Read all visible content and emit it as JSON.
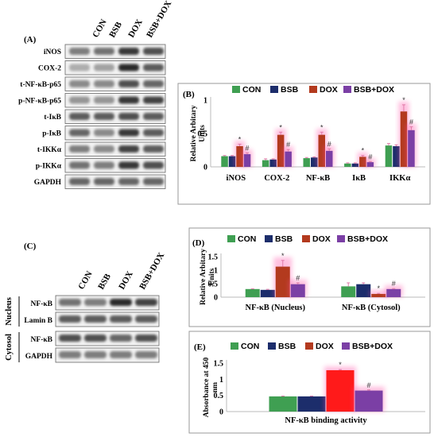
{
  "panel_a": {
    "label": "(A)",
    "groups": [
      "CON",
      "BSB",
      "DOX",
      "BSB+DOX"
    ],
    "bands": [
      "iNOS",
      "COX-2",
      "t-NF-κB-p65",
      "p-NF-κB-p65",
      "t-IκB",
      "p-IκB",
      "t-IKKα",
      "p-IKKα",
      "GAPDH"
    ]
  },
  "panel_c": {
    "label": "(C)",
    "groups": [
      "CON",
      "BSB",
      "DOX",
      "BSB+DOX"
    ],
    "fractions": [
      "Nucleus",
      "Cytosol"
    ],
    "nucleus_bands": [
      "NF-κB",
      "Lamin B"
    ],
    "cytosol_bands": [
      "NF-κB",
      "GAPDH"
    ]
  },
  "colors": {
    "CON": "#3f9f52",
    "BSB": "#1c2d6b",
    "DOX": "#b33a1e",
    "BSB+DOX": "#7b3fa5",
    "DOX_E": "#ff1a1a",
    "sig": "#ff4da6"
  },
  "chart_data": [
    {
      "panel": "(B)",
      "type": "bar",
      "categories": [
        "iNOS",
        "COX-2",
        "NF-κB",
        "IκB",
        "IKKα"
      ],
      "ylabel": "Relative Arbitary Units",
      "ylim": [
        0,
        1
      ],
      "yticks": [
        "0",
        "0.5",
        "1"
      ],
      "series": [
        {
          "name": "CON",
          "values": [
            0.16,
            0.1,
            0.13,
            0.05,
            0.32
          ]
        },
        {
          "name": "BSB",
          "values": [
            0.16,
            0.11,
            0.14,
            0.05,
            0.31
          ]
        },
        {
          "name": "DOX",
          "values": [
            0.31,
            0.48,
            0.48,
            0.15,
            0.83
          ]
        },
        {
          "name": "BSB+DOX",
          "values": [
            0.19,
            0.23,
            0.24,
            0.07,
            0.55
          ]
        }
      ],
      "errors": [
        [
          0.01,
          0.02,
          0.01,
          0.01,
          0.03
        ],
        [
          0.01,
          0.01,
          0.01,
          0.01,
          0.02
        ],
        [
          0.03,
          0.04,
          0.04,
          0.02,
          0.1
        ],
        [
          0.02,
          0.03,
          0.03,
          0.01,
          0.05
        ]
      ],
      "annotations": [
        {
          "series": 2,
          "marks": [
            "*",
            "*",
            "*",
            "*",
            "*"
          ]
        },
        {
          "series": 3,
          "marks": [
            "#",
            "#",
            "#",
            "#",
            "#"
          ]
        }
      ],
      "legend": "top"
    },
    {
      "panel": "(D)",
      "type": "bar",
      "categories": [
        "NF-κB (Nucleus)",
        "NF-κB (Cytosol)"
      ],
      "ylabel": "Relative Arbitary Units",
      "ylim": [
        0,
        1.5
      ],
      "yticks": [
        "0",
        "0.5",
        "1",
        "1.5"
      ],
      "series": [
        {
          "name": "CON",
          "values": [
            0.3,
            0.4
          ]
        },
        {
          "name": "BSB",
          "values": [
            0.27,
            0.48
          ]
        },
        {
          "name": "DOX",
          "values": [
            1.13,
            0.12
          ]
        },
        {
          "name": "BSB+DOX",
          "values": [
            0.48,
            0.3
          ]
        }
      ],
      "errors": [
        [
          0.01,
          0.13
        ],
        [
          0.02,
          0.05
        ],
        [
          0.23,
          0.02
        ],
        [
          0.05,
          0.02
        ]
      ],
      "annotations": [
        {
          "series": 2,
          "marks": [
            "*",
            "*"
          ]
        },
        {
          "series": 3,
          "marks": [
            "#",
            "#"
          ]
        }
      ],
      "legend": "top"
    },
    {
      "panel": "(E)",
      "type": "bar",
      "categories": [
        "NF-κB binding activity"
      ],
      "ylabel": "Absorbance at 450 nm",
      "ylim": [
        0,
        1.5
      ],
      "yticks": [
        "0",
        "0.5",
        "1",
        "1.5"
      ],
      "series": [
        {
          "name": "CON",
          "values": [
            0.47
          ]
        },
        {
          "name": "BSB",
          "values": [
            0.47
          ]
        },
        {
          "name": "DOX",
          "values": [
            1.28
          ]
        },
        {
          "name": "BSB+DOX",
          "values": [
            0.65
          ]
        }
      ],
      "errors": [
        [
          0.01
        ],
        [
          0.01
        ],
        [
          0.02
        ],
        [
          0.02
        ]
      ],
      "annotations": [
        {
          "series": 2,
          "marks": [
            "*"
          ]
        },
        {
          "series": 3,
          "marks": [
            "#"
          ]
        }
      ],
      "legend": "top"
    }
  ]
}
